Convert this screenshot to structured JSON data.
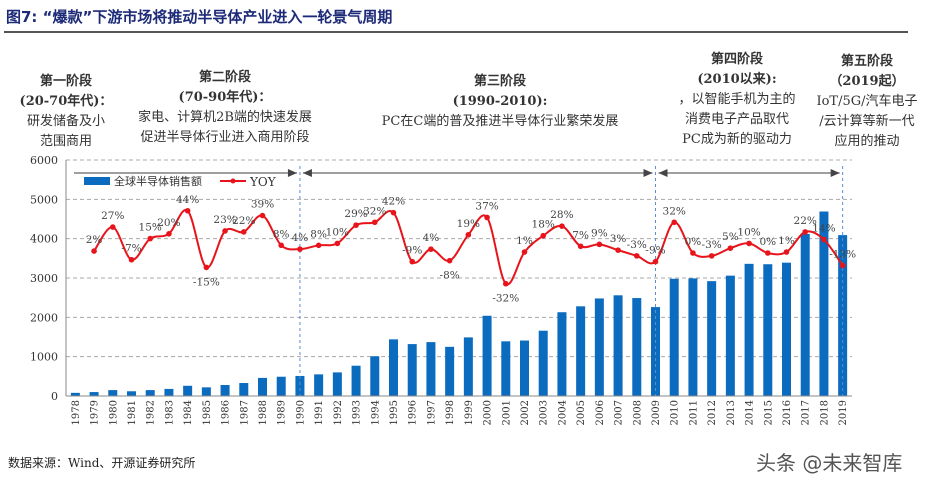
{
  "title": "图7:  “爆款”下游市场将推动半导体产业进入一轮景气周期",
  "phases": [
    {
      "name": "第一阶段",
      "period": "(20-70年代)：",
      "desc": [
        "研发储备及小",
        "范围商用"
      ]
    },
    {
      "name": "第二阶段",
      "period": "(70-90年代)：",
      "desc": [
        "家电、计算机2B端的快速发展",
        "促进半导体行业进入商用阶段"
      ]
    },
    {
      "name": "第三阶段",
      "period": "(1990-2010):",
      "desc": [
        "PC在C端的普及推进半导体行业繁荣发展"
      ]
    },
    {
      "name": "第四阶段",
      "period": "(2010以来):",
      "desc": [
        "，以智能手机为主的",
        "消费电子产品取代",
        "PC成为新的驱动力"
      ]
    },
    {
      "name": "第五阶段",
      "period": "（2019起）",
      "desc": [
        "IoT/5G/汽车电子",
        "/云计算等新一代",
        "应用的推动"
      ]
    }
  ],
  "footer": "数据来源：Wind、开源证券研究所",
  "watermark": "头条 @未来智库",
  "colors": {
    "bar": "#0b6bbf",
    "line": "#e8141b",
    "title": "#1c2a78",
    "divider": "#5b8fd0"
  },
  "chart_data": {
    "type": "bar+line",
    "categories": [
      "1978",
      "1979",
      "1980",
      "1981",
      "1982",
      "1983",
      "1984",
      "1985",
      "1986",
      "1987",
      "1988",
      "1989",
      "1990",
      "1991",
      "1992",
      "1993",
      "1994",
      "1995",
      "1996",
      "1997",
      "1998",
      "1999",
      "2000",
      "2001",
      "2002",
      "2003",
      "2004",
      "2005",
      "2006",
      "2007",
      "2008",
      "2009",
      "2010",
      "2011",
      "2012",
      "2013",
      "2014",
      "2015",
      "2016",
      "2017",
      "2018",
      "2019"
    ],
    "ylim": [
      0,
      6000
    ],
    "yticks": [
      0,
      1000,
      2000,
      3000,
      4000,
      5000,
      6000
    ],
    "grid": true,
    "legend_position": "top-left",
    "phase_dividers": [
      "1990",
      "2009",
      "2019"
    ],
    "series": [
      {
        "name": "全球半导体销售额",
        "type": "bar",
        "values": [
          80,
          100,
          150,
          120,
          150,
          180,
          260,
          220,
          280,
          330,
          460,
          490,
          510,
          550,
          600,
          770,
          1010,
          1440,
          1320,
          1370,
          1250,
          1490,
          2040,
          1390,
          1410,
          1660,
          2130,
          2280,
          2480,
          2560,
          2490,
          2260,
          2980,
          2990,
          2920,
          3060,
          3360,
          3350,
          3390,
          4120,
          4690,
          4090
        ]
      },
      {
        "name": "YOY",
        "type": "line",
        "unit": "%",
        "values": [
          null,
          2,
          27,
          -7,
          15,
          20,
          44,
          -15,
          23,
          22,
          39,
          8,
          4,
          8,
          10,
          29,
          32,
          42,
          -9,
          4,
          -8,
          19,
          37,
          -32,
          1,
          18,
          28,
          7,
          9,
          3,
          -3,
          -9,
          32,
          0,
          -3,
          5,
          10,
          0,
          1,
          22,
          14,
          -13
        ]
      }
    ]
  }
}
